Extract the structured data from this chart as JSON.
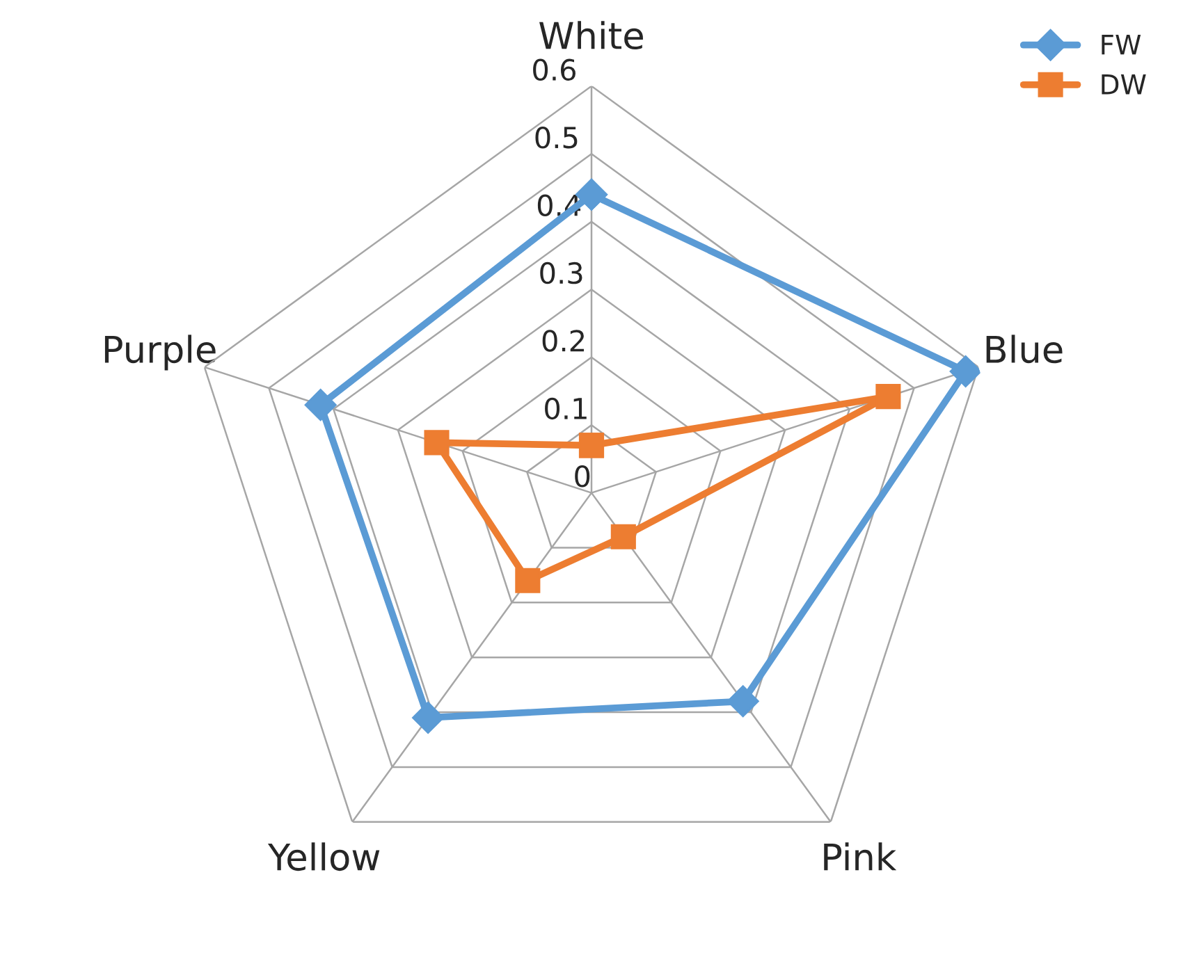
{
  "chart_data": {
    "type": "radar",
    "categories": [
      "White",
      "Blue",
      "Pink",
      "Yellow",
      "Purple"
    ],
    "series": [
      {
        "name": "FW",
        "color": "#5b9bd5",
        "marker": "diamond",
        "values": [
          0.44,
          0.58,
          0.38,
          0.41,
          0.42
        ]
      },
      {
        "name": "DW",
        "color": "#ed7d31",
        "marker": "square",
        "values": [
          0.07,
          0.46,
          0.08,
          0.16,
          0.24
        ]
      }
    ],
    "ylim": [
      0,
      0.6
    ],
    "yticks": [
      0,
      0.1,
      0.2,
      0.3,
      0.4,
      0.5,
      0.6
    ],
    "grid": true,
    "legend": "top right"
  }
}
